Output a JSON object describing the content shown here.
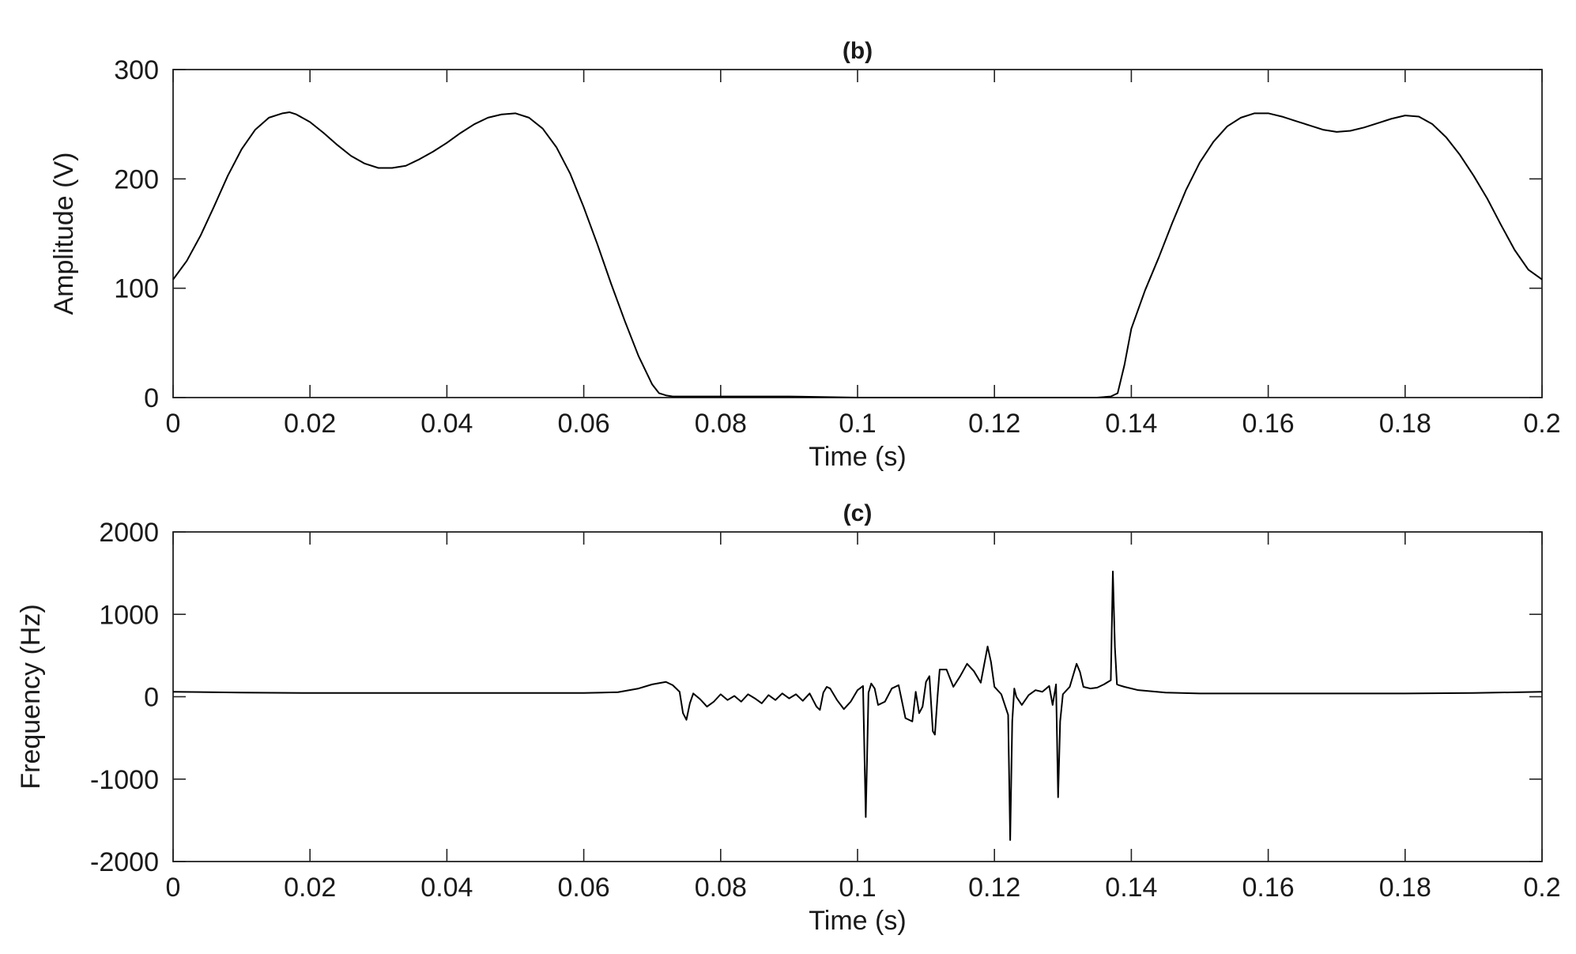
{
  "chart_data": [
    {
      "type": "line",
      "title": "(b)",
      "xlabel": "Time (s)",
      "ylabel": "Amplitude (V)",
      "xlim": [
        0,
        0.2
      ],
      "ylim": [
        0,
        300
      ],
      "xticks": [
        0,
        0.02,
        0.04,
        0.06,
        0.08,
        0.1,
        0.12,
        0.14,
        0.16,
        0.18,
        0.2
      ],
      "xtick_labels": [
        "0",
        "0.02",
        "0.04",
        "0.06",
        "0.08",
        "0.1",
        "0.12",
        "0.14",
        "0.16",
        "0.18",
        "0.2"
      ],
      "yticks": [
        0,
        100,
        200,
        300
      ],
      "ytick_labels": [
        "0",
        "100",
        "200",
        "300"
      ],
      "grid": false,
      "color": "#000000",
      "series": [
        {
          "x": [
            0,
            0.002,
            0.004,
            0.006,
            0.008,
            0.01,
            0.012,
            0.014,
            0.016,
            0.017,
            0.018,
            0.02,
            0.022,
            0.024,
            0.026,
            0.028,
            0.03,
            0.032,
            0.034,
            0.036,
            0.038,
            0.04,
            0.042,
            0.044,
            0.046,
            0.048,
            0.05,
            0.052,
            0.054,
            0.056,
            0.058,
            0.06,
            0.062,
            0.064,
            0.066,
            0.068,
            0.07,
            0.071,
            0.072,
            0.073,
            0.074,
            0.076,
            0.08,
            0.09,
            0.1,
            0.11,
            0.12,
            0.13,
            0.135,
            0.137,
            0.138,
            0.139,
            0.14,
            0.142,
            0.144,
            0.146,
            0.148,
            0.15,
            0.152,
            0.154,
            0.156,
            0.158,
            0.16,
            0.162,
            0.164,
            0.166,
            0.168,
            0.17,
            0.172,
            0.174,
            0.176,
            0.178,
            0.18,
            0.182,
            0.184,
            0.186,
            0.188,
            0.19,
            0.192,
            0.194,
            0.196,
            0.198,
            0.2
          ],
          "y": [
            108,
            125,
            148,
            175,
            203,
            227,
            245,
            256,
            260,
            261,
            259,
            252,
            242,
            231,
            221,
            214,
            210,
            210,
            212,
            218,
            225,
            233,
            242,
            250,
            256,
            259,
            260,
            256,
            246,
            229,
            205,
            174,
            140,
            104,
            70,
            38,
            12,
            4,
            2,
            1,
            1,
            1,
            1,
            1,
            0,
            0,
            0,
            0,
            0,
            1,
            4,
            30,
            63,
            98,
            128,
            160,
            190,
            215,
            234,
            248,
            256,
            260,
            260,
            257,
            253,
            249,
            245,
            243,
            244,
            247,
            251,
            255,
            258,
            257,
            250,
            238,
            222,
            203,
            182,
            158,
            135,
            117,
            108
          ]
        }
      ]
    },
    {
      "type": "line",
      "title": "(c)",
      "xlabel": "Time (s)",
      "ylabel": "Frequency (Hz)",
      "xlim": [
        0,
        0.2
      ],
      "ylim": [
        -2000,
        2000
      ],
      "xticks": [
        0,
        0.02,
        0.04,
        0.06,
        0.08,
        0.1,
        0.12,
        0.14,
        0.16,
        0.18,
        0.2
      ],
      "xtick_labels": [
        "0",
        "0.02",
        "0.04",
        "0.06",
        "0.08",
        "0.1",
        "0.12",
        "0.14",
        "0.16",
        "0.18",
        "0.2"
      ],
      "yticks": [
        -2000,
        -1000,
        0,
        1000,
        2000
      ],
      "ytick_labels": [
        "-2000",
        "-1000",
        "0",
        "1000",
        "2000"
      ],
      "grid": false,
      "color": "#000000",
      "series": [
        {
          "x": [
            0,
            0.01,
            0.02,
            0.03,
            0.04,
            0.05,
            0.06,
            0.065,
            0.068,
            0.07,
            0.072,
            0.073,
            0.074,
            0.0745,
            0.075,
            0.0755,
            0.076,
            0.077,
            0.078,
            0.079,
            0.08,
            0.081,
            0.082,
            0.083,
            0.084,
            0.085,
            0.086,
            0.087,
            0.088,
            0.089,
            0.09,
            0.091,
            0.092,
            0.093,
            0.094,
            0.0945,
            0.095,
            0.0955,
            0.096,
            0.097,
            0.098,
            0.099,
            0.1,
            0.1008,
            0.1012,
            0.1016,
            0.102,
            0.1025,
            0.103,
            0.104,
            0.105,
            0.106,
            0.107,
            0.108,
            0.1085,
            0.109,
            0.1095,
            0.11,
            0.1105,
            0.111,
            0.1113,
            0.1117,
            0.112,
            0.113,
            0.114,
            0.115,
            0.116,
            0.117,
            0.118,
            0.119,
            0.1195,
            0.12,
            0.121,
            0.122,
            0.1223,
            0.1226,
            0.1229,
            0.1232,
            0.124,
            0.125,
            0.126,
            0.127,
            0.128,
            0.1285,
            0.129,
            0.1293,
            0.1296,
            0.13,
            0.131,
            0.132,
            0.1325,
            0.133,
            0.134,
            0.135,
            0.136,
            0.137,
            0.1373,
            0.1376,
            0.1379,
            0.1382,
            0.139,
            0.141,
            0.145,
            0.15,
            0.16,
            0.17,
            0.18,
            0.19,
            0.2
          ],
          "y": [
            60,
            50,
            45,
            45,
            45,
            45,
            45,
            55,
            100,
            150,
            180,
            140,
            60,
            -200,
            -280,
            -80,
            40,
            -30,
            -120,
            -60,
            30,
            -40,
            10,
            -60,
            30,
            -20,
            -80,
            20,
            -40,
            40,
            -20,
            30,
            -50,
            40,
            -120,
            -160,
            50,
            120,
            100,
            -40,
            -150,
            -60,
            80,
            130,
            -1460,
            50,
            160,
            100,
            -100,
            -60,
            100,
            140,
            -260,
            -300,
            60,
            -200,
            -120,
            180,
            250,
            -420,
            -460,
            20,
            330,
            330,
            120,
            250,
            400,
            310,
            170,
            610,
            420,
            120,
            30,
            -220,
            -1740,
            -300,
            100,
            0,
            -100,
            20,
            80,
            60,
            130,
            -100,
            150,
            -1220,
            -300,
            30,
            120,
            400,
            300,
            120,
            100,
            110,
            150,
            200,
            1520,
            600,
            150,
            140,
            120,
            80,
            50,
            40,
            40,
            40,
            40,
            45,
            60
          ]
        }
      ]
    }
  ]
}
